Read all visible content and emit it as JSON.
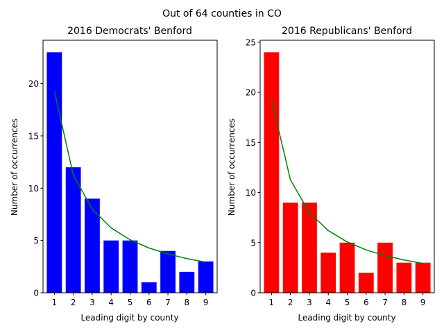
{
  "suptitle": "Out of 64 counties in CO",
  "chart_data": [
    {
      "type": "bar",
      "title": "2016 Democrats' Benford",
      "xlabel": "Leading digit by county",
      "ylabel": "Number of occurrences",
      "categories": [
        "1",
        "2",
        "3",
        "4",
        "5",
        "6",
        "7",
        "8",
        "9"
      ],
      "values": [
        23,
        12,
        9,
        5,
        5,
        1,
        4,
        2,
        3
      ],
      "bar_color": "#0000ff",
      "line": {
        "name": "",
        "color": "#008000",
        "values": [
          19.27,
          11.27,
          8.0,
          6.2,
          5.07,
          4.28,
          3.71,
          3.27,
          2.93
        ]
      },
      "ylim": [
        0,
        24.15
      ],
      "yticks": [
        0,
        5,
        10,
        15,
        20
      ]
    },
    {
      "type": "bar",
      "title": "2016 Republicans' Benford",
      "xlabel": "Leading digit by county",
      "ylabel": "Number of occurrences",
      "categories": [
        "1",
        "2",
        "3",
        "4",
        "5",
        "6",
        "7",
        "8",
        "9"
      ],
      "values": [
        24,
        9,
        9,
        4,
        5,
        2,
        5,
        3,
        3
      ],
      "bar_color": "#ff0000",
      "line": {
        "name": "",
        "color": "#008000",
        "values": [
          19.27,
          11.27,
          8.0,
          6.2,
          5.07,
          4.28,
          3.71,
          3.27,
          2.93
        ]
      },
      "ylim": [
        0,
        25.2
      ],
      "yticks": [
        0,
        5,
        10,
        15,
        20,
        25
      ]
    }
  ]
}
